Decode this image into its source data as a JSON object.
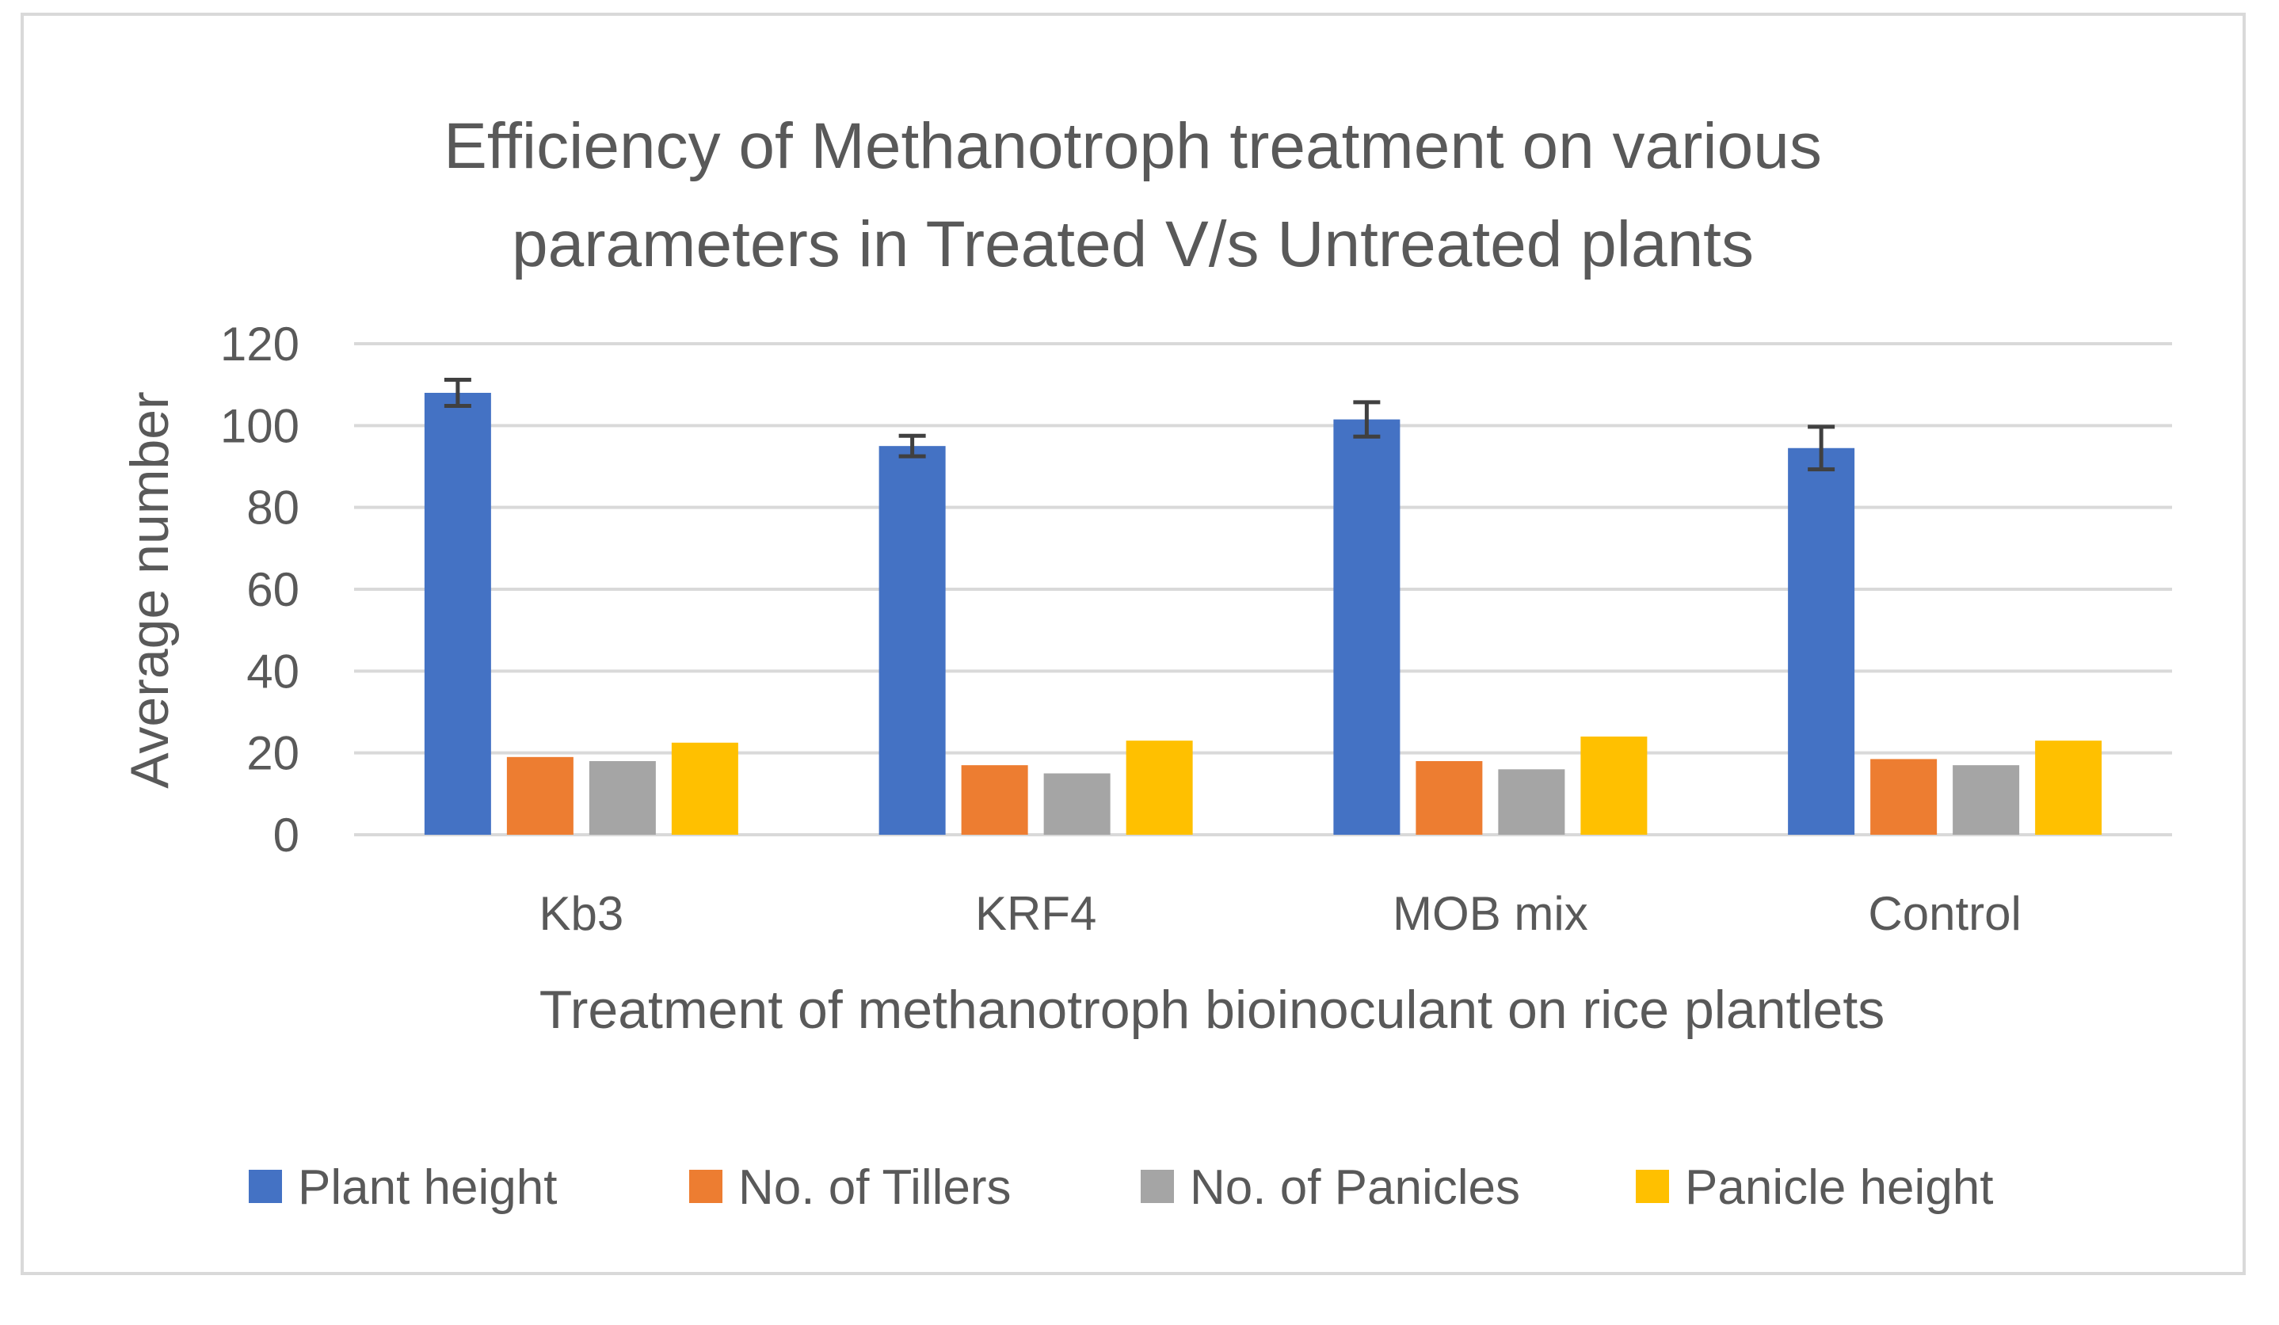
{
  "chart_data": {
    "type": "bar",
    "title": [
      "Efficiency of Methanotroph treatment on various",
      "parameters in Treated V/s Untreated plants"
    ],
    "xlabel": "Treatment of methanotroph bioinoculant on rice plantlets",
    "ylabel": "Average number",
    "categories": [
      "Kb3",
      "KRF4",
      "MOB mix",
      "Control"
    ],
    "ylim": [
      0,
      120
    ],
    "yticks": [
      0,
      20,
      40,
      60,
      80,
      100,
      120
    ],
    "grid": true,
    "legend_position": "bottom",
    "series": [
      {
        "name": "Plant height",
        "color": "#4472c4",
        "values": [
          108,
          95,
          101.5,
          94.5
        ],
        "errors": [
          3.2,
          2.5,
          4.2,
          5.2
        ]
      },
      {
        "name": "No. of Tillers",
        "color": "#ed7d31",
        "values": [
          19,
          17,
          18,
          18.5
        ]
      },
      {
        "name": "No. of Panicles",
        "color": "#a5a5a5",
        "values": [
          18,
          15,
          16,
          17
        ]
      },
      {
        "name": "Panicle height",
        "color": "#ffc000",
        "values": [
          22.5,
          23,
          24,
          23
        ]
      }
    ],
    "gridline_color": "#d9d9d9",
    "errorbar_color": "#404040"
  }
}
